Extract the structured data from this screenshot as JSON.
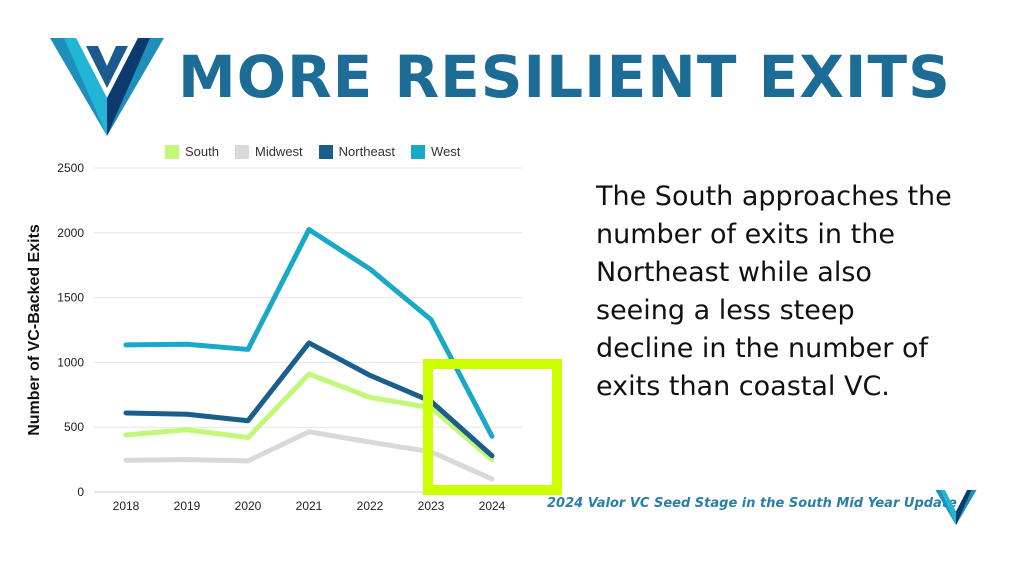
{
  "header": {
    "title": "MORE RESILIENT EXITS"
  },
  "description": "The South approaches the number of exits in the Northeast while also seeing a less steep decline in the number of exits than coastal VC.",
  "footer": {
    "text": "2024 Valor VC Seed Stage in the South Mid Year Update"
  },
  "colors": {
    "brand": "#1c6c96",
    "highlight": "#ccff00",
    "logo_light": "#22b5d6",
    "logo_dark": "#0d3a6e"
  },
  "chart_data": {
    "type": "line",
    "title": "",
    "xlabel": "",
    "ylabel": "Number of VC-Backed Exits",
    "x": [
      "2018",
      "2019",
      "2020",
      "2021",
      "2022",
      "2023",
      "2024"
    ],
    "ylim": [
      0,
      2500
    ],
    "yticks": [
      0,
      500,
      1000,
      1500,
      2000,
      2500
    ],
    "grid": true,
    "legend_position": "top",
    "series": [
      {
        "name": "South",
        "color": "#c2f77a",
        "values": [
          440,
          480,
          420,
          910,
          730,
          650,
          250
        ]
      },
      {
        "name": "Midwest",
        "color": "#d9d9d9",
        "values": [
          245,
          250,
          240,
          465,
          385,
          310,
          100
        ]
      },
      {
        "name": "Northeast",
        "color": "#1a5e8c",
        "values": [
          610,
          600,
          550,
          1150,
          900,
          700,
          280
        ]
      },
      {
        "name": "West",
        "color": "#17a9c6",
        "values": [
          1135,
          1140,
          1100,
          2025,
          1720,
          1330,
          430
        ]
      }
    ],
    "highlight_box": {
      "x_from": "2023",
      "x_to": "2024",
      "color": "#ccff00"
    }
  }
}
